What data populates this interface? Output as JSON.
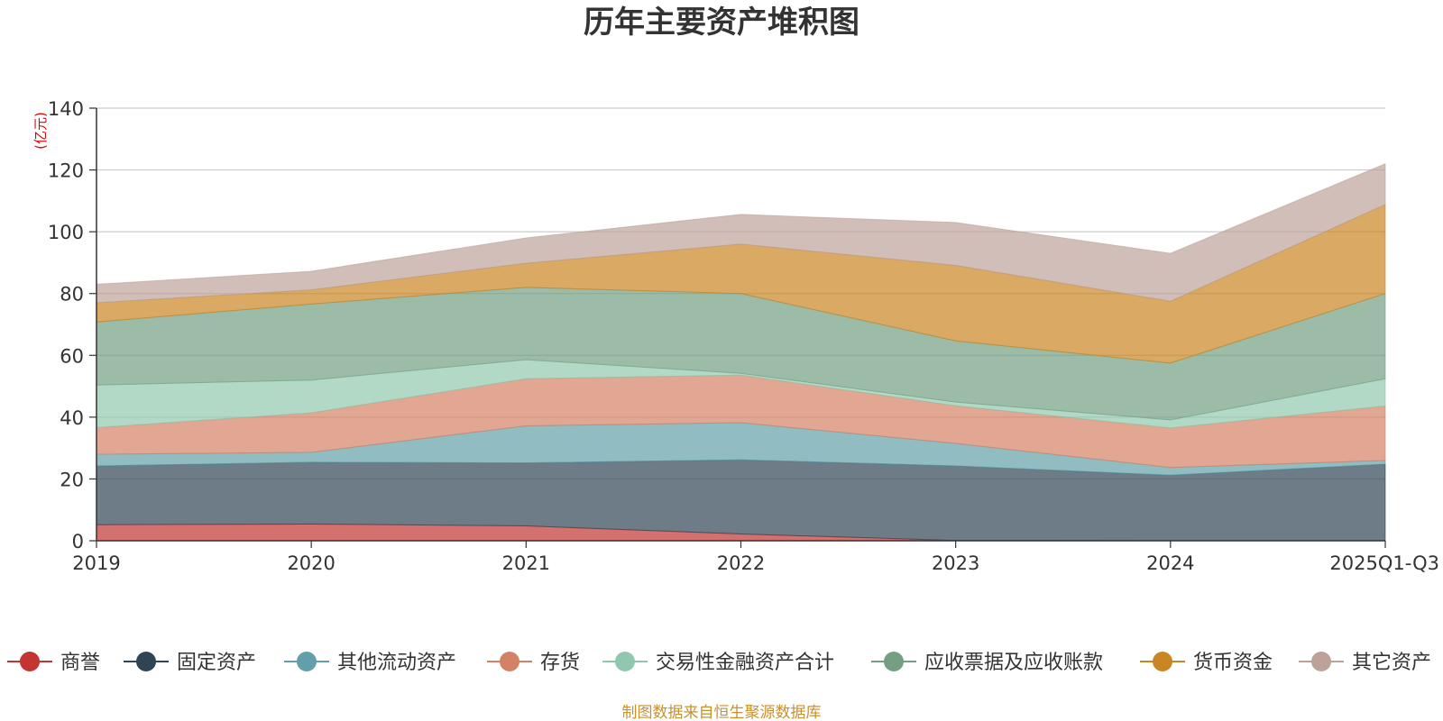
{
  "chart_data": {
    "type": "area",
    "stacked": true,
    "title": "历年主要资产堆积图",
    "unit_label": "(亿元)",
    "categories": [
      "2019",
      "2020",
      "2021",
      "2022",
      "2023",
      "2024",
      "2025Q1-Q3"
    ],
    "ylim": [
      0,
      140
    ],
    "yticks": [
      0,
      20,
      40,
      60,
      80,
      100,
      120,
      140
    ],
    "grid": true,
    "legend_position": "bottom",
    "series": [
      {
        "name": "商誉",
        "color": "#c23531",
        "values": [
          5.2,
          5.4,
          4.8,
          2.2,
          0.1,
          0,
          0
        ]
      },
      {
        "name": "固定资产",
        "color": "#2f4554",
        "values": [
          19.0,
          20.0,
          20.4,
          24.0,
          24.1,
          21.2,
          24.8
        ]
      },
      {
        "name": "其他流动资产",
        "color": "#61a0a8",
        "values": [
          3.8,
          3.2,
          12.0,
          12.0,
          7.3,
          2.5,
          1.2
        ]
      },
      {
        "name": "存货",
        "color": "#d48265",
        "values": [
          8.6,
          12.8,
          15.2,
          15.4,
          12.2,
          12.8,
          17.6
        ]
      },
      {
        "name": "交易性金融资产合计",
        "color": "#91c7ae",
        "values": [
          13.8,
          10.6,
          6.2,
          0.6,
          1.2,
          2.6,
          8.8
        ]
      },
      {
        "name": "应收票据及应收账款",
        "color": "#749f83",
        "values": [
          20.4,
          24.6,
          23.4,
          25.8,
          19.8,
          18.4,
          27.6
        ]
      },
      {
        "name": "货币资金",
        "color": "#ca8622",
        "values": [
          6.2,
          4.6,
          7.8,
          16.0,
          24.4,
          20.0,
          28.8
        ]
      },
      {
        "name": "其它资产",
        "color": "#bda29a",
        "values": [
          6.0,
          6.0,
          8.2,
          9.6,
          13.9,
          15.5,
          13.2
        ]
      }
    ]
  },
  "source_note": "制图数据来自恒生聚源数据库"
}
